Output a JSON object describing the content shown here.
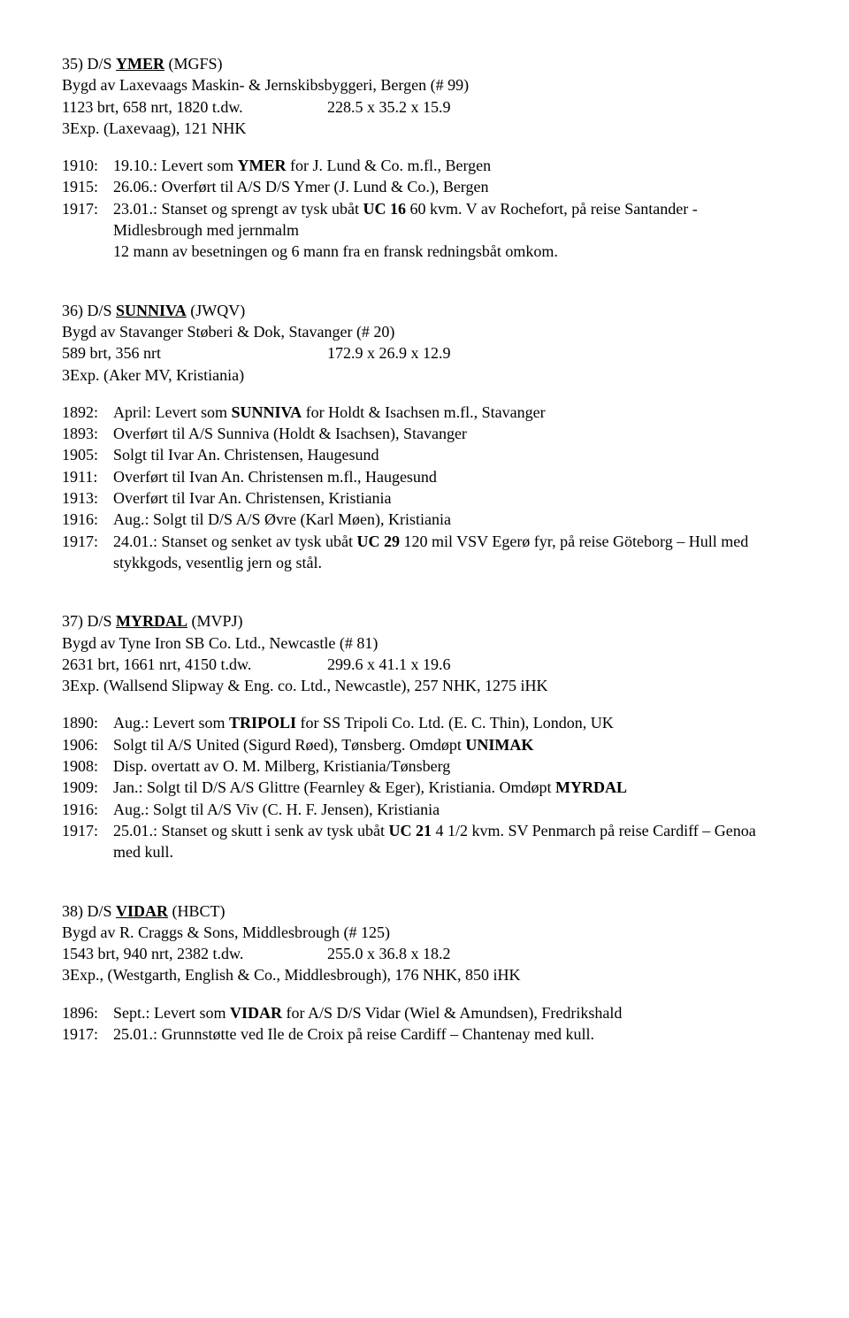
{
  "entries": [
    {
      "num": "35)",
      "prefix": "D/S ",
      "name": "YMER",
      "code": " (MGFS)",
      "builder": "Bygd av Laxevaags Maskin- & Jernskibsbyggeri, Bergen (# 99)",
      "specs_left": "1123 brt, 658 nrt, 1820 t.dw.",
      "specs_right": "228.5 x 35.2 x 15.9",
      "engine": "3Exp. (Laxevaag), 121 NHK",
      "history": [
        {
          "year": "1910:",
          "text_pre": "19.10.: Levert som ",
          "bold": "YMER",
          "text_post": " for J. Lund & Co. m.fl., Bergen"
        },
        {
          "year": "1915:",
          "text": "26.06.: Overført til A/S D/S Ymer (J. Lund & Co.), Bergen"
        },
        {
          "year": "1917:",
          "text_pre": "23.01.: Stanset og sprengt av tysk ubåt ",
          "bold": "UC 16",
          "text_post": " 60 kvm. V av Rochefort, på reise Santander - Midlesbrough med jernmalm"
        },
        {
          "indent": true,
          "text": "12 mann av besetningen og 6 mann fra en fransk redningsbåt omkom."
        }
      ]
    },
    {
      "num": "36)",
      "prefix": "D/S ",
      "name": "SUNNIVA",
      "code": " (JWQV)",
      "builder": "Bygd av Stavanger Støberi & Dok, Stavanger (# 20)",
      "specs_left": "589 brt, 356 nrt",
      "specs_right": "172.9 x 26.9 x 12.9",
      "engine": "3Exp. (Aker MV, Kristiania)",
      "history": [
        {
          "year": "1892:",
          "text_pre": "April: Levert som ",
          "bold": "SUNNIVA",
          "text_post": " for Holdt & Isachsen m.fl., Stavanger"
        },
        {
          "year": "1893:",
          "text": "Overført til A/S Sunniva (Holdt & Isachsen), Stavanger"
        },
        {
          "year": "1905:",
          "text": "Solgt til Ivar An. Christensen, Haugesund"
        },
        {
          "year": "1911:",
          "text": "Overført til Ivan An. Christensen m.fl., Haugesund"
        },
        {
          "year": "1913:",
          "text": "Overført til Ivar An. Christensen, Kristiania"
        },
        {
          "year": "1916:",
          "text": "Aug.: Solgt til D/S A/S Øvre (Karl Møen), Kristiania"
        },
        {
          "year": "1917:",
          "text_pre": "24.01.: Stanset og senket av tysk ubåt ",
          "bold": "UC 29",
          "text_post": " 120 mil VSV Egerø fyr, på reise Göteborg – Hull med stykkgods, vesentlig jern og stål."
        }
      ]
    },
    {
      "num": "37)",
      "prefix": "D/S ",
      "name": "MYRDAL",
      "code": " (MVPJ)",
      "builder": "Bygd av Tyne Iron SB Co. Ltd., Newcastle (# 81)",
      "specs_left": "2631 brt, 1661 nrt, 4150 t.dw.",
      "specs_right": "299.6 x 41.1 x 19.6",
      "engine": "3Exp. (Wallsend Slipway & Eng. co. Ltd., Newcastle), 257 NHK, 1275 iHK",
      "history": [
        {
          "year": "1890:",
          "text_pre": "Aug.: Levert som ",
          "bold": "TRIPOLI",
          "text_post": " for SS Tripoli Co. Ltd. (E. C. Thin), London, UK"
        },
        {
          "year": "1906:",
          "text_pre": "Solgt til A/S United (Sigurd Røed), Tønsberg. Omdøpt ",
          "bold": "UNIMAK",
          "text_post": ""
        },
        {
          "year": "1908:",
          "text": "Disp. overtatt av O. M. Milberg, Kristiania/Tønsberg"
        },
        {
          "year": "1909:",
          "text_pre": "Jan.: Solgt til D/S A/S Glittre (Fearnley & Eger), Kristiania. Omdøpt ",
          "bold": "MYRDAL",
          "text_post": ""
        },
        {
          "year": "1916:",
          "text": "Aug.: Solgt til A/S Viv (C. H. F. Jensen), Kristiania"
        },
        {
          "year": "1917:",
          "text_pre": "25.01.: Stanset og skutt i senk av tysk ubåt ",
          "bold": "UC 21",
          "text_post": " 4 1/2 kvm. SV Penmarch på reise Cardiff – Genoa med kull."
        }
      ]
    },
    {
      "num": "38)",
      "prefix": "D/S ",
      "name": "VIDAR",
      "code": " (HBCT)",
      "builder": "Bygd av R. Craggs & Sons, Middlesbrough (# 125)",
      "specs_left": "1543 brt, 940 nrt, 2382 t.dw.",
      "specs_right": "255.0 x 36.8 x 18.2",
      "engine": "3Exp., (Westgarth, English & Co., Middlesbrough), 176 NHK, 850 iHK",
      "history": [
        {
          "year": "1896:",
          "text_pre": "Sept.: Levert som ",
          "bold": "VIDAR",
          "text_post": " for A/S D/S Vidar (Wiel & Amundsen), Fredrikshald"
        },
        {
          "year": "1917:",
          "text": "25.01.: Grunnstøtte ved Ile de Croix på reise Cardiff – Chantenay med kull."
        }
      ]
    }
  ]
}
